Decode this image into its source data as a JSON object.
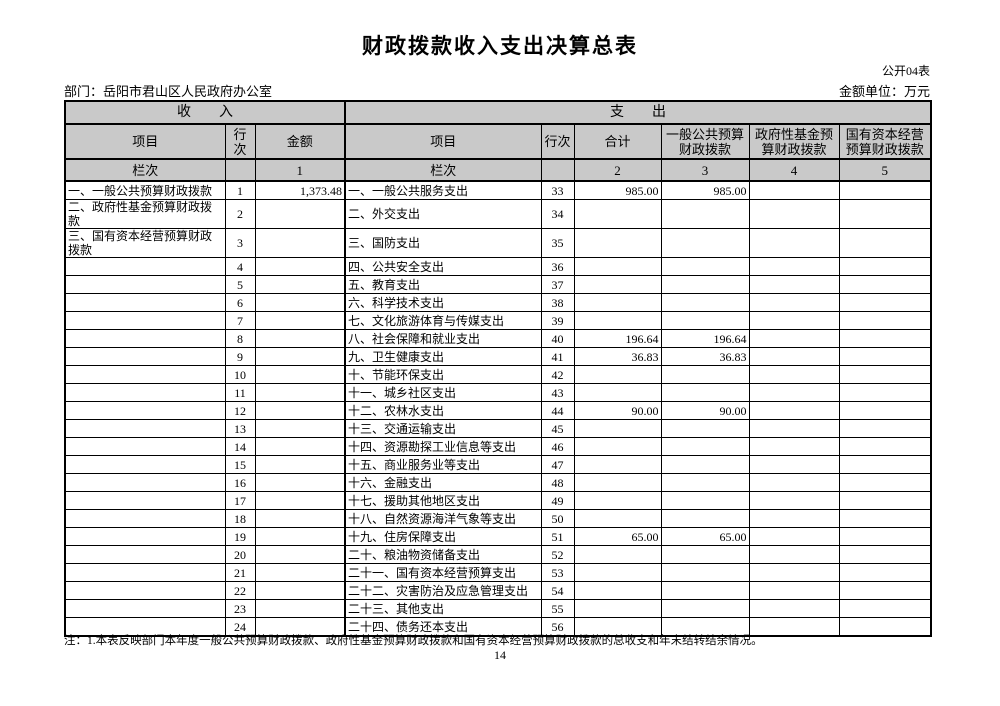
{
  "page": {
    "title": "财政拨款收入支出决算总表",
    "form_code": "公开04表",
    "department_label": "部门：岳阳市君山区人民政府办公室",
    "unit_label": "金额单位：万元",
    "note": "注：1.本表反映部门本年度一般公共预算财政拨款、政府性基金预算财政拨款和国有资本经营预算财政拨款的总收支和年末结转结余情况。",
    "page_number": "14"
  },
  "table": {
    "section_income": "收　　入",
    "section_expenditure": "支　　出",
    "income_headers": {
      "item": "项目",
      "line_no": "行次",
      "amount": "金额"
    },
    "exp_headers": {
      "item": "项目",
      "line_no": "行次",
      "total": "合计",
      "general_budget": "一般公共预算\n财政拨款",
      "gov_fund": "政府性基金预\n算财政拨款",
      "state_capital": "国有资本经营\n预算财政拨款"
    },
    "column_index_label": "栏次",
    "column_indexes": {
      "amount": "1",
      "total": "2",
      "general": "3",
      "gov_fund": "4",
      "state_capital": "5"
    },
    "rows": [
      {
        "inc_item": "一、一般公共预算财政拨款",
        "inc_line": "1",
        "inc_amount": "1,373.48",
        "exp_item": "一、一般公共服务支出",
        "exp_line": "33",
        "exp_total": "985.00",
        "exp_general": "985.00",
        "exp_gov_fund": "",
        "exp_state_capital": ""
      },
      {
        "inc_item": "二、政府性基金预算财政拨款",
        "inc_line": "2",
        "inc_amount": "",
        "exp_item": "二、外交支出",
        "exp_line": "34",
        "exp_total": "",
        "exp_general": "",
        "exp_gov_fund": "",
        "exp_state_capital": ""
      },
      {
        "inc_item": "三、国有资本经营预算财政拨款",
        "inc_line": "3",
        "inc_amount": "",
        "exp_item": "三、国防支出",
        "exp_line": "35",
        "exp_total": "",
        "exp_general": "",
        "exp_gov_fund": "",
        "exp_state_capital": ""
      },
      {
        "inc_item": "",
        "inc_line": "4",
        "inc_amount": "",
        "exp_item": "四、公共安全支出",
        "exp_line": "36",
        "exp_total": "",
        "exp_general": "",
        "exp_gov_fund": "",
        "exp_state_capital": ""
      },
      {
        "inc_item": "",
        "inc_line": "5",
        "inc_amount": "",
        "exp_item": "五、教育支出",
        "exp_line": "37",
        "exp_total": "",
        "exp_general": "",
        "exp_gov_fund": "",
        "exp_state_capital": ""
      },
      {
        "inc_item": "",
        "inc_line": "6",
        "inc_amount": "",
        "exp_item": "六、科学技术支出",
        "exp_line": "38",
        "exp_total": "",
        "exp_general": "",
        "exp_gov_fund": "",
        "exp_state_capital": ""
      },
      {
        "inc_item": "",
        "inc_line": "7",
        "inc_amount": "",
        "exp_item": "七、文化旅游体育与传媒支出",
        "exp_line": "39",
        "exp_total": "",
        "exp_general": "",
        "exp_gov_fund": "",
        "exp_state_capital": ""
      },
      {
        "inc_item": "",
        "inc_line": "8",
        "inc_amount": "",
        "exp_item": "八、社会保障和就业支出",
        "exp_line": "40",
        "exp_total": "196.64",
        "exp_general": "196.64",
        "exp_gov_fund": "",
        "exp_state_capital": ""
      },
      {
        "inc_item": "",
        "inc_line": "9",
        "inc_amount": "",
        "exp_item": "九、卫生健康支出",
        "exp_line": "41",
        "exp_total": "36.83",
        "exp_general": "36.83",
        "exp_gov_fund": "",
        "exp_state_capital": ""
      },
      {
        "inc_item": "",
        "inc_line": "10",
        "inc_amount": "",
        "exp_item": "十、节能环保支出",
        "exp_line": "42",
        "exp_total": "",
        "exp_general": "",
        "exp_gov_fund": "",
        "exp_state_capital": ""
      },
      {
        "inc_item": "",
        "inc_line": "11",
        "inc_amount": "",
        "exp_item": "十一、城乡社区支出",
        "exp_line": "43",
        "exp_total": "",
        "exp_general": "",
        "exp_gov_fund": "",
        "exp_state_capital": ""
      },
      {
        "inc_item": "",
        "inc_line": "12",
        "inc_amount": "",
        "exp_item": "十二、农林水支出",
        "exp_line": "44",
        "exp_total": "90.00",
        "exp_general": "90.00",
        "exp_gov_fund": "",
        "exp_state_capital": ""
      },
      {
        "inc_item": "",
        "inc_line": "13",
        "inc_amount": "",
        "exp_item": "十三、交通运输支出",
        "exp_line": "45",
        "exp_total": "",
        "exp_general": "",
        "exp_gov_fund": "",
        "exp_state_capital": ""
      },
      {
        "inc_item": "",
        "inc_line": "14",
        "inc_amount": "",
        "exp_item": "十四、资源勘探工业信息等支出",
        "exp_line": "46",
        "exp_total": "",
        "exp_general": "",
        "exp_gov_fund": "",
        "exp_state_capital": ""
      },
      {
        "inc_item": "",
        "inc_line": "15",
        "inc_amount": "",
        "exp_item": "十五、商业服务业等支出",
        "exp_line": "47",
        "exp_total": "",
        "exp_general": "",
        "exp_gov_fund": "",
        "exp_state_capital": ""
      },
      {
        "inc_item": "",
        "inc_line": "16",
        "inc_amount": "",
        "exp_item": "十六、金融支出",
        "exp_line": "48",
        "exp_total": "",
        "exp_general": "",
        "exp_gov_fund": "",
        "exp_state_capital": ""
      },
      {
        "inc_item": "",
        "inc_line": "17",
        "inc_amount": "",
        "exp_item": "十七、援助其他地区支出",
        "exp_line": "49",
        "exp_total": "",
        "exp_general": "",
        "exp_gov_fund": "",
        "exp_state_capital": ""
      },
      {
        "inc_item": "",
        "inc_line": "18",
        "inc_amount": "",
        "exp_item": "十八、自然资源海洋气象等支出",
        "exp_line": "50",
        "exp_total": "",
        "exp_general": "",
        "exp_gov_fund": "",
        "exp_state_capital": ""
      },
      {
        "inc_item": "",
        "inc_line": "19",
        "inc_amount": "",
        "exp_item": "十九、住房保障支出",
        "exp_line": "51",
        "exp_total": "65.00",
        "exp_general": "65.00",
        "exp_gov_fund": "",
        "exp_state_capital": ""
      },
      {
        "inc_item": "",
        "inc_line": "20",
        "inc_amount": "",
        "exp_item": "二十、粮油物资储备支出",
        "exp_line": "52",
        "exp_total": "",
        "exp_general": "",
        "exp_gov_fund": "",
        "exp_state_capital": ""
      },
      {
        "inc_item": "",
        "inc_line": "21",
        "inc_amount": "",
        "exp_item": "二十一、国有资本经营预算支出",
        "exp_line": "53",
        "exp_total": "",
        "exp_general": "",
        "exp_gov_fund": "",
        "exp_state_capital": ""
      },
      {
        "inc_item": "",
        "inc_line": "22",
        "inc_amount": "",
        "exp_item": "二十二、灾害防治及应急管理支出",
        "exp_line": "54",
        "exp_total": "",
        "exp_general": "",
        "exp_gov_fund": "",
        "exp_state_capital": ""
      },
      {
        "inc_item": "",
        "inc_line": "23",
        "inc_amount": "",
        "exp_item": "二十三、其他支出",
        "exp_line": "55",
        "exp_total": "",
        "exp_general": "",
        "exp_gov_fund": "",
        "exp_state_capital": ""
      },
      {
        "inc_item": "",
        "inc_line": "24",
        "inc_amount": "",
        "exp_item": "二十四、债务还本支出",
        "exp_line": "56",
        "exp_total": "",
        "exp_general": "",
        "exp_gov_fund": "",
        "exp_state_capital": ""
      }
    ]
  }
}
